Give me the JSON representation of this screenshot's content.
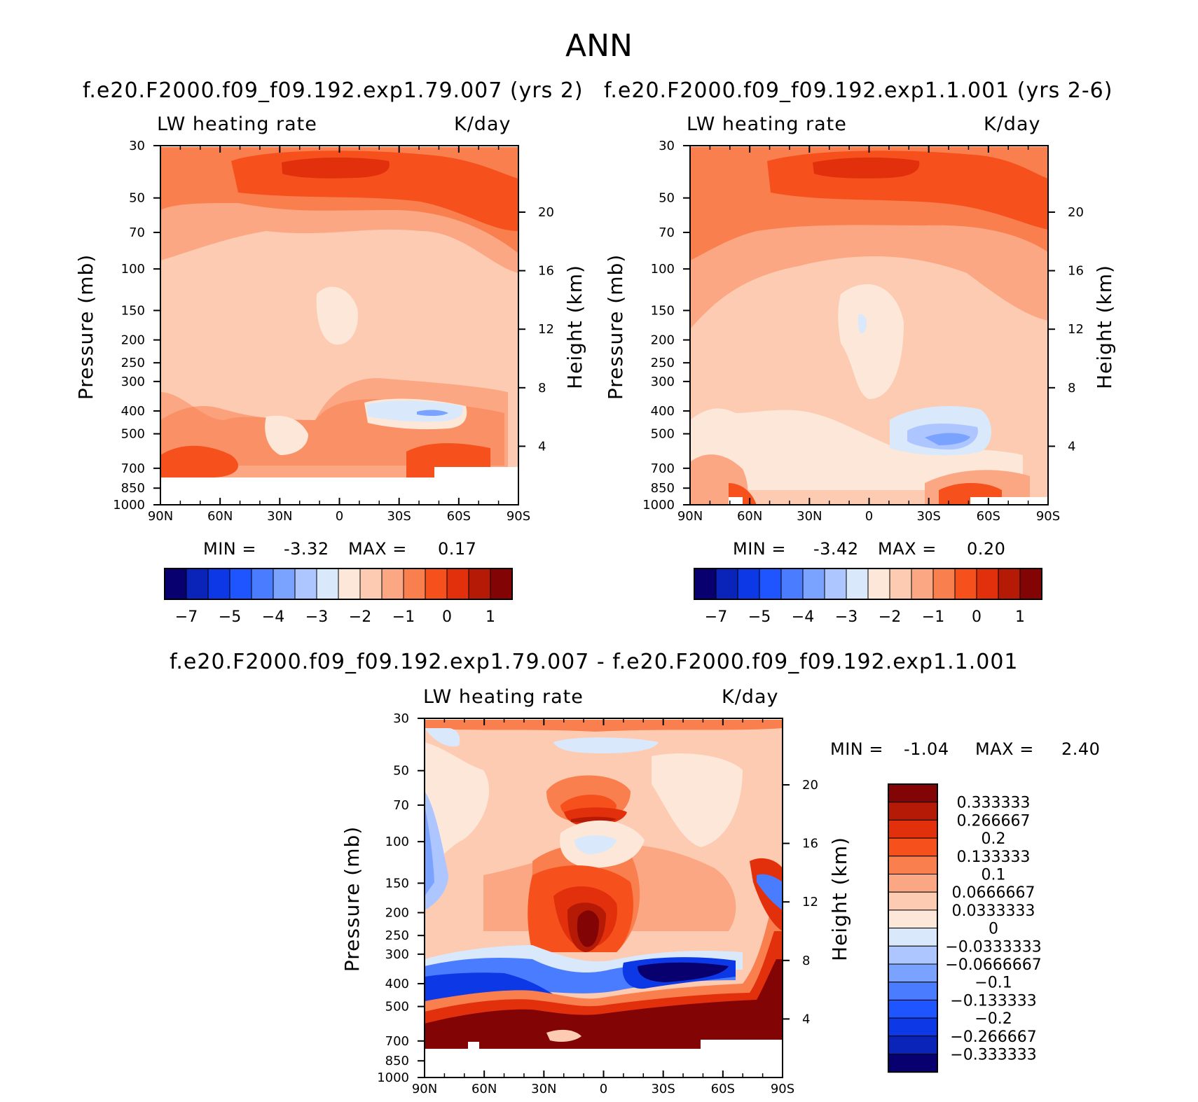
{
  "figure": {
    "title": "ANN",
    "colors": {
      "ramp": [
        "#08006e",
        "#0a24b9",
        "#0c38e6",
        "#1e55ff",
        "#4a7cff",
        "#7aa2ff",
        "#aec6ff",
        "#d9e9fb",
        "#fde7d8",
        "#fccbb1",
        "#fba784",
        "#fa7f4f",
        "#f6511d",
        "#e22f0c",
        "#b51a06",
        "#830404"
      ],
      "missing": "#ffffff"
    }
  },
  "panels": [
    {
      "case": "f.e20.F2000.f09_f09.192.exp1.79.007 (yrs 2)",
      "variable": "LW heating rate",
      "units": "K/day",
      "min_label": "MIN =",
      "min_value": "-3.32",
      "max_label": "MAX =",
      "max_value": "0.17",
      "colorbar_labels": [
        "-7",
        "-5",
        "-4",
        "-3",
        "-2",
        "-1",
        "0",
        "1"
      ]
    },
    {
      "case": "f.e20.F2000.f09_f09.192.exp1.1.001 (yrs 2-6)",
      "variable": "LW heating rate",
      "units": "K/day",
      "min_label": "MIN =",
      "min_value": "-3.42",
      "max_label": "MAX =",
      "max_value": "0.20",
      "colorbar_labels": [
        "-7",
        "-5",
        "-4",
        "-3",
        "-2",
        "-1",
        "0",
        "1"
      ]
    },
    {
      "case": "f.e20.F2000.f09_f09.192.exp1.79.007 - f.e20.F2000.f09_f09.192.exp1.1.001",
      "variable": "LW heating rate",
      "units": "K/day",
      "min_label": "MIN =",
      "min_value": "-1.04",
      "max_label": "MAX =",
      "max_value": "2.40",
      "colorbar_labels": [
        "0.333333",
        "0.266667",
        "0.2",
        "0.133333",
        "0.1",
        "0.0666667",
        "0.0333333",
        "0",
        "-0.0333333",
        "-0.0666667",
        "-0.1",
        "-0.133333",
        "-0.2",
        "-0.266667",
        "-0.333333"
      ]
    }
  ],
  "chart_data": [
    {
      "type": "heatmap",
      "title": "f.e20.F2000.f09_f09.192.exp1.79.007 (yrs 2)",
      "subtitle": "LW heating rate",
      "units": "K/day",
      "xlabel": "",
      "ylabel": "Pressure (mb)",
      "y2label": "Height (km)",
      "x_ticks": [
        "90N",
        "60N",
        "30N",
        "0",
        "30S",
        "60S",
        "90S"
      ],
      "y_ticks": [
        "30",
        "50",
        "70",
        "100",
        "150",
        "200",
        "250",
        "300",
        "400",
        "500",
        "700",
        "850",
        "1000"
      ],
      "y2_ticks": [
        "20",
        "16",
        "12",
        "8",
        "4"
      ],
      "xlim": [
        90,
        -90
      ],
      "ylim": [
        1000,
        30
      ],
      "levels": [
        -7,
        -6,
        -5,
        -4.5,
        -4,
        -3.5,
        -3,
        -2.5,
        -2,
        -1.5,
        -1,
        -0.5,
        0,
        0.5,
        1
      ],
      "colorbar_labels": [
        "-7",
        "-5",
        "-4",
        "-3",
        "-2",
        "-1",
        "0",
        "1"
      ],
      "min": -3.32,
      "max": 0.17
    },
    {
      "type": "heatmap",
      "title": "f.e20.F2000.f09_f09.192.exp1.1.001 (yrs 2-6)",
      "subtitle": "LW heating rate",
      "units": "K/day",
      "xlabel": "",
      "ylabel": "Pressure (mb)",
      "y2label": "Height (km)",
      "x_ticks": [
        "90N",
        "60N",
        "30N",
        "0",
        "30S",
        "60S",
        "90S"
      ],
      "y_ticks": [
        "30",
        "50",
        "70",
        "100",
        "150",
        "200",
        "250",
        "300",
        "400",
        "500",
        "700",
        "850",
        "1000"
      ],
      "y2_ticks": [
        "20",
        "16",
        "12",
        "8",
        "4"
      ],
      "xlim": [
        90,
        -90
      ],
      "ylim": [
        1000,
        30
      ],
      "levels": [
        -7,
        -6,
        -5,
        -4.5,
        -4,
        -3.5,
        -3,
        -2.5,
        -2,
        -1.5,
        -1,
        -0.5,
        0,
        0.5,
        1
      ],
      "colorbar_labels": [
        "-7",
        "-5",
        "-4",
        "-3",
        "-2",
        "-1",
        "0",
        "1"
      ],
      "min": -3.42,
      "max": 0.2
    },
    {
      "type": "heatmap",
      "title": "f.e20.F2000.f09_f09.192.exp1.79.007 - f.e20.F2000.f09_f09.192.exp1.1.001",
      "subtitle": "LW heating rate",
      "units": "K/day",
      "xlabel": "",
      "ylabel": "Pressure (mb)",
      "y2label": "Height (km)",
      "x_ticks": [
        "90N",
        "60N",
        "30N",
        "0",
        "30S",
        "60S",
        "90S"
      ],
      "y_ticks": [
        "30",
        "50",
        "70",
        "100",
        "150",
        "200",
        "250",
        "300",
        "400",
        "500",
        "700",
        "850",
        "1000"
      ],
      "y2_ticks": [
        "20",
        "16",
        "12",
        "8",
        "4"
      ],
      "xlim": [
        90,
        -90
      ],
      "ylim": [
        1000,
        30
      ],
      "levels": [
        -0.333333,
        -0.266667,
        -0.2,
        -0.133333,
        -0.1,
        -0.0666667,
        -0.0333333,
        0,
        0.0333333,
        0.0666667,
        0.1,
        0.133333,
        0.2,
        0.266667,
        0.333333
      ],
      "colorbar_labels": [
        "0.333333",
        "0.266667",
        "0.2",
        "0.133333",
        "0.1",
        "0.0666667",
        "0.0333333",
        "0",
        "-0.0333333",
        "-0.0666667",
        "-0.1",
        "-0.133333",
        "-0.2",
        "-0.266667",
        "-0.333333"
      ],
      "min": -1.04,
      "max": 2.4
    }
  ]
}
